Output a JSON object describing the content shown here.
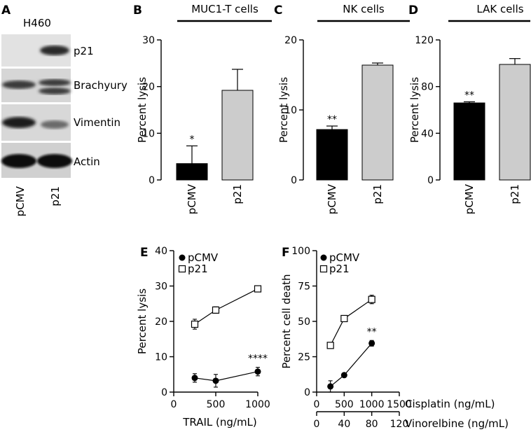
{
  "panel_letters": [
    "A",
    "B",
    "C",
    "D",
    "E",
    "F"
  ],
  "blot": {
    "cell_line": "H460",
    "bands": [
      "p21",
      "Brachyury",
      "Vimentin",
      "Actin"
    ],
    "lanes": [
      "pCMV",
      "p21"
    ]
  },
  "colors": {
    "pcmv_bar": "#000000",
    "p21_bar": "#cccccc",
    "axis": "#000000"
  },
  "chart_data": [
    {
      "id": "B",
      "type": "bar",
      "title": "MUC1-T cells",
      "ylabel": "Percent lysis",
      "categories": [
        "pCMV",
        "p21"
      ],
      "values": [
        3.5,
        19.2
      ],
      "errors": [
        3.8,
        4.5
      ],
      "ylim": [
        0,
        30
      ],
      "yticks": [
        0,
        10,
        20,
        30
      ],
      "yticklabels": [
        "0",
        "10",
        "20",
        "30"
      ],
      "annotations": [
        "*",
        ""
      ]
    },
    {
      "id": "C",
      "type": "bar",
      "title": "NK cells",
      "ylabel": "Percent lysis",
      "categories": [
        "pCMV",
        "p21"
      ],
      "values": [
        7.2,
        16.4
      ],
      "errors": [
        0.5,
        0.3
      ],
      "ylim": [
        0,
        20
      ],
      "yticks": [
        0,
        10,
        20
      ],
      "yticklabels": [
        "0",
        "10",
        "20"
      ],
      "annotations": [
        "**",
        ""
      ]
    },
    {
      "id": "D",
      "type": "bar",
      "title": "LAK cells",
      "ylabel": "Percent lysis",
      "categories": [
        "pCMV",
        "p21"
      ],
      "values": [
        66,
        99
      ],
      "errors": [
        1,
        5
      ],
      "ylim": [
        0,
        120
      ],
      "yticks": [
        0,
        40,
        80,
        120
      ],
      "yticklabels": [
        "0",
        "40",
        "80",
        "120"
      ],
      "annotations": [
        "**",
        ""
      ]
    },
    {
      "id": "E",
      "type": "line",
      "ylabel": "Percent lysis",
      "xlabel": "TRAIL (ng/mL)",
      "xlim": [
        0,
        1000
      ],
      "xticks": [
        0,
        500,
        1000
      ],
      "xticklabels": [
        "0",
        "500",
        "1000"
      ],
      "ylim": [
        0,
        40
      ],
      "yticks": [
        0,
        10,
        20,
        30,
        40
      ],
      "yticklabels": [
        "0",
        "10",
        "20",
        "30",
        "40"
      ],
      "legend": [
        "pCMV",
        "p21"
      ],
      "series": [
        {
          "name": "pCMV",
          "marker": "filled-circle",
          "x": [
            250,
            500,
            1000
          ],
          "y": [
            4,
            3.2,
            5.8
          ],
          "err": [
            1.2,
            1.8,
            1.2
          ]
        },
        {
          "name": "p21",
          "marker": "open-square",
          "x": [
            250,
            500,
            1000
          ],
          "y": [
            19.2,
            23.2,
            29.2
          ],
          "err": [
            1.4,
            0.9,
            0.8
          ]
        }
      ],
      "annotation": {
        "text": "****",
        "series": "pCMV",
        "x": 1000
      }
    },
    {
      "id": "F",
      "type": "line",
      "ylabel": "Percent cell death",
      "xlabel": "Cisplatin (ng/mL)",
      "xlabel2": "Vinorelbine (ng/mL)",
      "xlim": [
        0,
        1500
      ],
      "xticks": [
        0,
        500,
        1000,
        1500
      ],
      "xticklabels": [
        "0",
        "500",
        "1000",
        "1500"
      ],
      "x2lim": [
        0,
        120
      ],
      "x2ticks": [
        0,
        40,
        80,
        120
      ],
      "x2ticklabels": [
        "0",
        "40",
        "80",
        "120"
      ],
      "ylim": [
        0,
        100
      ],
      "yticks": [
        0,
        25,
        50,
        75,
        100
      ],
      "yticklabels": [
        "0",
        "25",
        "50",
        "75",
        "100"
      ],
      "legend": [
        "pCMV",
        "p21"
      ],
      "series": [
        {
          "name": "pCMV",
          "marker": "filled-circle",
          "x": [
            250,
            500,
            1000
          ],
          "y": [
            4,
            12,
            34.5
          ],
          "err": [
            4,
            1,
            2
          ]
        },
        {
          "name": "p21",
          "marker": "open-square",
          "x": [
            250,
            500,
            1000
          ],
          "y": [
            33,
            52,
            65.5
          ],
          "err": [
            2,
            2,
            3
          ]
        }
      ],
      "annotation": {
        "text": "**",
        "series": "pCMV",
        "x": 1000
      }
    }
  ]
}
